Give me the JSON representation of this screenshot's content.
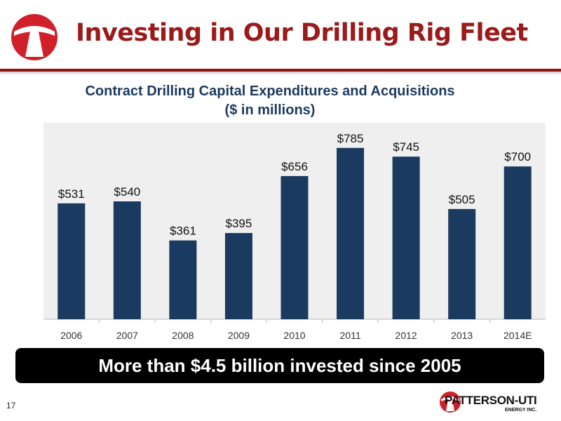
{
  "slide": {
    "title": "Investing in Our Drilling Rig Fleet",
    "banner": "More than $4.5 billion invested since 2005",
    "page_number": "17",
    "footer_company": "PATTERSON-UTI",
    "footer_sub": "ENERGY INC."
  },
  "colors": {
    "title": "#9b1a1a",
    "bar": "#1b3a5f",
    "plot_bg": "#efefef",
    "banner_bg": "#000000",
    "logo_red": "#d0202a"
  },
  "chart_data": {
    "type": "bar",
    "title": "Contract Drilling Capital Expenditures and Acquisitions",
    "subtitle": "($ in millions)",
    "categories": [
      "2006",
      "2007",
      "2008",
      "2009",
      "2010",
      "2011",
      "2012",
      "2013",
      "2014E"
    ],
    "values": [
      531,
      540,
      361,
      395,
      656,
      785,
      745,
      505,
      700
    ],
    "data_labels": [
      "$531",
      "$540",
      "$361",
      "$395",
      "$656",
      "$785",
      "$745",
      "$505",
      "$700"
    ],
    "xlabel": "",
    "ylabel": "",
    "ylim": [
      0,
      900
    ],
    "grid": false
  }
}
